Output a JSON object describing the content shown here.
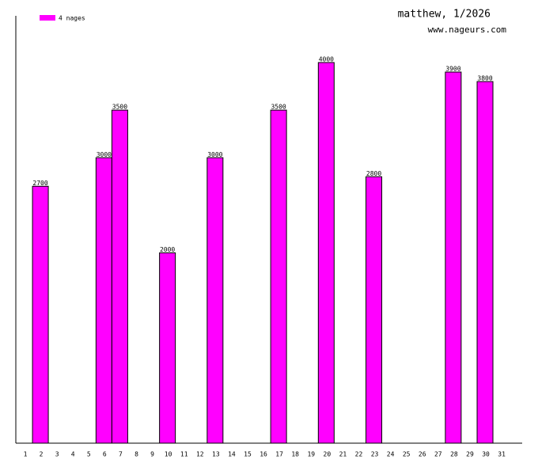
{
  "chart_data": {
    "type": "bar",
    "title": "matthew, 1/2026",
    "subtitle": "www.nageurs.com",
    "categories": [
      "1",
      "2",
      "3",
      "4",
      "5",
      "6",
      "7",
      "8",
      "9",
      "10",
      "11",
      "12",
      "13",
      "14",
      "15",
      "16",
      "17",
      "18",
      "19",
      "20",
      "21",
      "22",
      "23",
      "24",
      "25",
      "26",
      "27",
      "28",
      "29",
      "30",
      "31"
    ],
    "series": [
      {
        "name": "4 nages",
        "color": "#ff00ff",
        "values": [
          null,
          2700,
          null,
          null,
          null,
          3000,
          3500,
          null,
          null,
          2000,
          null,
          null,
          3000,
          null,
          null,
          null,
          3500,
          null,
          null,
          4000,
          null,
          null,
          2800,
          null,
          null,
          null,
          null,
          3900,
          null,
          3800,
          null
        ]
      }
    ]
  }
}
